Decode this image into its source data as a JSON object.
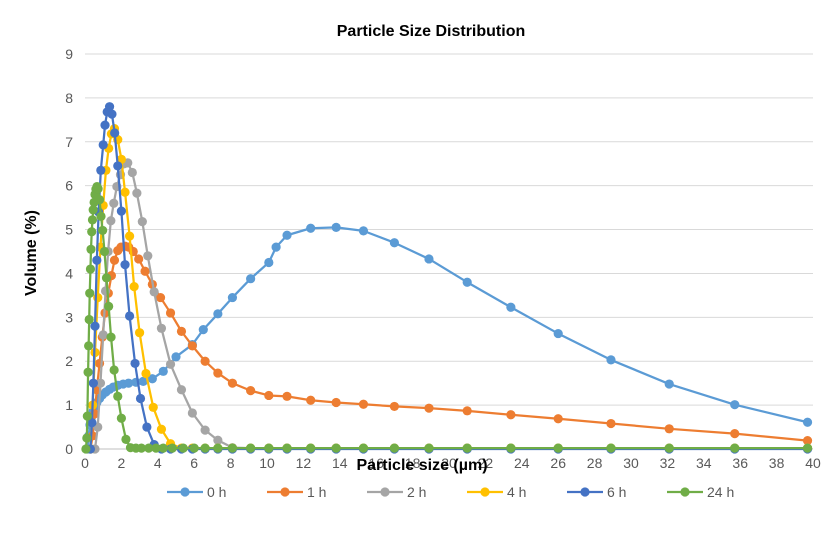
{
  "chart_data": {
    "type": "scatter",
    "title": "Particle Size Distribution",
    "xlabel": "Particle size  (µm)",
    "ylabel": "Volume (%)",
    "xlim": [
      0,
      40
    ],
    "ylim": [
      0,
      9
    ],
    "x_ticks": [
      0,
      2,
      4,
      6,
      8,
      10,
      12,
      14,
      16,
      18,
      20,
      22,
      24,
      26,
      28,
      30,
      32,
      34,
      36,
      38,
      40
    ],
    "y_ticks": [
      0,
      1,
      2,
      3,
      4,
      5,
      6,
      7,
      8,
      9
    ],
    "grid": "horizontal",
    "legend": "bottom",
    "series": [
      {
        "name": "0 h",
        "color": "#5b9bd5",
        "points": [
          [
            0.15,
            0.0
          ],
          [
            0.2,
            0.3
          ],
          [
            0.27,
            0.55
          ],
          [
            0.35,
            0.72
          ],
          [
            0.45,
            0.86
          ],
          [
            0.55,
            0.97
          ],
          [
            0.65,
            1.06
          ],
          [
            0.8,
            1.15
          ],
          [
            0.95,
            1.23
          ],
          [
            1.15,
            1.3
          ],
          [
            1.35,
            1.36
          ],
          [
            1.55,
            1.41
          ],
          [
            1.8,
            1.45
          ],
          [
            2.1,
            1.48
          ],
          [
            2.4,
            1.5
          ],
          [
            2.8,
            1.52
          ],
          [
            3.2,
            1.54
          ],
          [
            3.7,
            1.6
          ],
          [
            4.3,
            1.77
          ],
          [
            5.0,
            2.1
          ],
          [
            5.9,
            2.38
          ],
          [
            6.5,
            2.72
          ],
          [
            7.3,
            3.08
          ],
          [
            8.1,
            3.45
          ],
          [
            9.1,
            3.88
          ],
          [
            10.1,
            4.25
          ],
          [
            10.5,
            4.6
          ],
          [
            11.1,
            4.87
          ],
          [
            12.4,
            5.03
          ],
          [
            13.8,
            5.05
          ],
          [
            15.3,
            4.97
          ],
          [
            17.0,
            4.7
          ],
          [
            18.9,
            4.33
          ],
          [
            21.0,
            3.8
          ],
          [
            23.4,
            3.23
          ],
          [
            26.0,
            2.63
          ],
          [
            28.9,
            2.03
          ],
          [
            32.1,
            1.48
          ],
          [
            35.7,
            1.01
          ],
          [
            39.7,
            0.61
          ]
        ]
      },
      {
        "name": "1 h",
        "color": "#ed7d31",
        "points": [
          [
            0.3,
            0.0
          ],
          [
            0.42,
            0.3
          ],
          [
            0.53,
            0.8
          ],
          [
            0.65,
            1.35
          ],
          [
            0.8,
            1.95
          ],
          [
            0.95,
            2.55
          ],
          [
            1.1,
            3.1
          ],
          [
            1.28,
            3.55
          ],
          [
            1.45,
            3.95
          ],
          [
            1.62,
            4.3
          ],
          [
            1.8,
            4.52
          ],
          [
            1.98,
            4.6
          ],
          [
            2.2,
            4.62
          ],
          [
            2.4,
            4.6
          ],
          [
            2.65,
            4.5
          ],
          [
            2.95,
            4.33
          ],
          [
            3.3,
            4.05
          ],
          [
            3.7,
            3.75
          ],
          [
            4.15,
            3.45
          ],
          [
            4.7,
            3.1
          ],
          [
            5.3,
            2.68
          ],
          [
            5.9,
            2.35
          ],
          [
            6.6,
            2.0
          ],
          [
            7.3,
            1.73
          ],
          [
            8.1,
            1.5
          ],
          [
            9.1,
            1.33
          ],
          [
            10.1,
            1.22
          ],
          [
            11.1,
            1.2
          ],
          [
            12.4,
            1.11
          ],
          [
            13.8,
            1.06
          ],
          [
            15.3,
            1.02
          ],
          [
            17.0,
            0.97
          ],
          [
            18.9,
            0.93
          ],
          [
            21.0,
            0.87
          ],
          [
            23.4,
            0.78
          ],
          [
            26.0,
            0.69
          ],
          [
            28.9,
            0.58
          ],
          [
            32.1,
            0.46
          ],
          [
            35.7,
            0.35
          ],
          [
            39.7,
            0.19
          ]
        ]
      },
      {
        "name": "2 h",
        "color": "#a5a5a5",
        "points": [
          [
            0.55,
            0.0
          ],
          [
            0.7,
            0.5
          ],
          [
            0.85,
            1.5
          ],
          [
            1.0,
            2.6
          ],
          [
            1.13,
            3.6
          ],
          [
            1.27,
            4.5
          ],
          [
            1.42,
            5.2
          ],
          [
            1.58,
            5.6
          ],
          [
            1.75,
            5.98
          ],
          [
            1.95,
            6.25
          ],
          [
            2.15,
            6.5
          ],
          [
            2.35,
            6.52
          ],
          [
            2.6,
            6.3
          ],
          [
            2.85,
            5.83
          ],
          [
            3.15,
            5.18
          ],
          [
            3.45,
            4.4
          ],
          [
            3.8,
            3.58
          ],
          [
            4.2,
            2.75
          ],
          [
            4.7,
            1.93
          ],
          [
            5.3,
            1.35
          ],
          [
            5.9,
            0.82
          ],
          [
            6.6,
            0.43
          ],
          [
            7.3,
            0.2
          ],
          [
            8.1,
            0.03
          ],
          [
            9.1,
            0.02
          ],
          [
            10.1,
            0.02
          ],
          [
            11.1,
            0.02
          ],
          [
            12.4,
            0.02
          ],
          [
            13.8,
            0.02
          ],
          [
            15.3,
            0.02
          ],
          [
            17.0,
            0.02
          ],
          [
            18.9,
            0.02
          ],
          [
            21.0,
            0.02
          ],
          [
            23.4,
            0.02
          ],
          [
            26.0,
            0.02
          ],
          [
            28.9,
            0.02
          ],
          [
            32.1,
            0.02
          ],
          [
            35.7,
            0.02
          ],
          [
            39.7,
            0.02
          ]
        ]
      },
      {
        "name": "4 h",
        "color": "#ffc000",
        "points": [
          [
            0.3,
            0.0
          ],
          [
            0.42,
            1.0
          ],
          [
            0.55,
            2.2
          ],
          [
            0.7,
            3.45
          ],
          [
            0.85,
            4.6
          ],
          [
            1.0,
            5.55
          ],
          [
            1.15,
            6.35
          ],
          [
            1.3,
            6.85
          ],
          [
            1.45,
            7.18
          ],
          [
            1.62,
            7.3
          ],
          [
            1.8,
            7.05
          ],
          [
            2.0,
            6.6
          ],
          [
            2.2,
            5.85
          ],
          [
            2.45,
            4.85
          ],
          [
            2.7,
            3.7
          ],
          [
            3.0,
            2.65
          ],
          [
            3.35,
            1.72
          ],
          [
            3.75,
            0.95
          ],
          [
            4.2,
            0.45
          ],
          [
            4.7,
            0.12
          ],
          [
            5.3,
            0.02
          ],
          [
            5.9,
            0.02
          ],
          [
            6.6,
            0.02
          ],
          [
            7.3,
            0.02
          ],
          [
            8.1,
            0.02
          ],
          [
            9.1,
            0.02
          ],
          [
            10.1,
            0.02
          ],
          [
            11.1,
            0.02
          ],
          [
            12.4,
            0.02
          ],
          [
            13.8,
            0.02
          ],
          [
            15.3,
            0.02
          ],
          [
            17.0,
            0.02
          ],
          [
            18.9,
            0.02
          ],
          [
            21.0,
            0.02
          ],
          [
            23.4,
            0.02
          ],
          [
            26.0,
            0.02
          ],
          [
            28.9,
            0.02
          ],
          [
            32.1,
            0.02
          ],
          [
            35.7,
            0.02
          ],
          [
            39.7,
            0.02
          ]
        ]
      },
      {
        "name": "6 h",
        "color": "#4472c4",
        "points": [
          [
            0.3,
            0.0
          ],
          [
            0.38,
            0.6
          ],
          [
            0.46,
            1.5
          ],
          [
            0.55,
            2.8
          ],
          [
            0.65,
            4.3
          ],
          [
            0.75,
            5.4
          ],
          [
            0.87,
            6.35
          ],
          [
            1.0,
            6.93
          ],
          [
            1.1,
            7.38
          ],
          [
            1.22,
            7.68
          ],
          [
            1.35,
            7.8
          ],
          [
            1.48,
            7.63
          ],
          [
            1.63,
            7.2
          ],
          [
            1.8,
            6.45
          ],
          [
            2.0,
            5.42
          ],
          [
            2.2,
            4.2
          ],
          [
            2.45,
            3.03
          ],
          [
            2.75,
            1.95
          ],
          [
            3.05,
            1.15
          ],
          [
            3.4,
            0.5
          ],
          [
            3.8,
            0.1
          ],
          [
            4.2,
            0.0
          ],
          [
            4.7,
            0.0
          ],
          [
            5.3,
            0.0
          ],
          [
            5.9,
            0.0
          ],
          [
            6.6,
            0.0
          ],
          [
            7.3,
            0.0
          ],
          [
            8.1,
            0.0
          ],
          [
            9.1,
            0.0
          ],
          [
            10.1,
            0.0
          ],
          [
            11.1,
            0.0
          ],
          [
            12.4,
            0.0
          ],
          [
            13.8,
            0.0
          ],
          [
            15.3,
            0.0
          ],
          [
            17.0,
            0.0
          ],
          [
            18.9,
            0.0
          ],
          [
            21.0,
            0.0
          ],
          [
            23.4,
            0.0
          ],
          [
            26.0,
            0.0
          ],
          [
            28.9,
            0.0
          ],
          [
            32.1,
            0.0
          ],
          [
            35.7,
            0.0
          ],
          [
            39.7,
            0.0
          ]
        ]
      },
      {
        "name": "24 h",
        "color": "#70ad47",
        "points": [
          [
            0.05,
            0.0
          ],
          [
            0.1,
            0.25
          ],
          [
            0.13,
            0.75
          ],
          [
            0.17,
            1.75
          ],
          [
            0.2,
            2.35
          ],
          [
            0.23,
            2.95
          ],
          [
            0.26,
            3.55
          ],
          [
            0.3,
            4.1
          ],
          [
            0.33,
            4.55
          ],
          [
            0.37,
            4.95
          ],
          [
            0.41,
            5.22
          ],
          [
            0.45,
            5.45
          ],
          [
            0.5,
            5.62
          ],
          [
            0.55,
            5.8
          ],
          [
            0.6,
            5.92
          ],
          [
            0.66,
            5.98
          ],
          [
            0.72,
            5.93
          ],
          [
            0.8,
            5.68
          ],
          [
            0.88,
            5.3
          ],
          [
            0.97,
            4.98
          ],
          [
            1.07,
            4.5
          ],
          [
            1.18,
            3.9
          ],
          [
            1.3,
            3.25
          ],
          [
            1.43,
            2.55
          ],
          [
            1.6,
            1.8
          ],
          [
            1.8,
            1.2
          ],
          [
            2.0,
            0.7
          ],
          [
            2.25,
            0.22
          ],
          [
            2.5,
            0.03
          ],
          [
            2.8,
            0.02
          ],
          [
            3.1,
            0.02
          ],
          [
            3.5,
            0.02
          ],
          [
            3.9,
            0.02
          ],
          [
            4.3,
            0.02
          ],
          [
            4.8,
            0.02
          ],
          [
            5.4,
            0.02
          ],
          [
            6.0,
            0.02
          ],
          [
            6.6,
            0.02
          ],
          [
            7.3,
            0.02
          ],
          [
            8.1,
            0.02
          ],
          [
            9.1,
            0.02
          ],
          [
            10.1,
            0.02
          ],
          [
            11.1,
            0.02
          ],
          [
            12.4,
            0.02
          ],
          [
            13.8,
            0.02
          ],
          [
            15.3,
            0.02
          ],
          [
            17.0,
            0.02
          ],
          [
            18.9,
            0.02
          ],
          [
            21.0,
            0.02
          ],
          [
            23.4,
            0.02
          ],
          [
            26.0,
            0.02
          ],
          [
            28.9,
            0.02
          ],
          [
            32.1,
            0.02
          ],
          [
            35.7,
            0.02
          ],
          [
            39.7,
            0.02
          ]
        ]
      }
    ]
  }
}
